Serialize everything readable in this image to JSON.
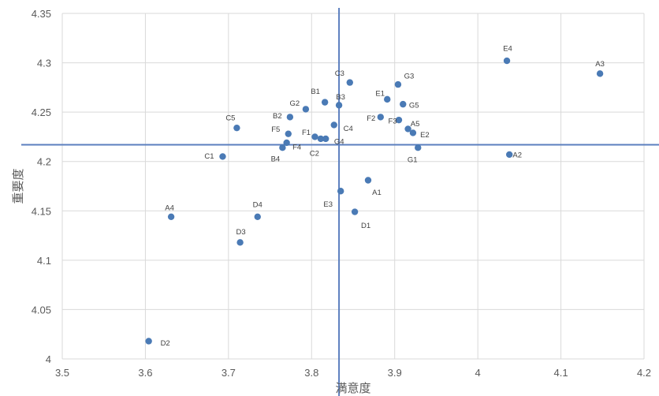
{
  "chart_data": {
    "type": "scatter",
    "title": "",
    "xlabel": "満意度",
    "ylabel": "重要度",
    "xlim": [
      3.5,
      4.2
    ],
    "ylim": [
      4.0,
      4.35
    ],
    "xticks": [
      "3.5",
      "3.6",
      "3.7",
      "3.8",
      "3.9",
      "4",
      "4.1",
      "4.2"
    ],
    "yticks": [
      "4",
      "4.05",
      "4.1",
      "4.15",
      "4.2",
      "4.25",
      "4.3",
      "4.35"
    ],
    "grid": true,
    "legend": "none",
    "marker_color": "#4a7ab5",
    "reference_line_color": "#5b7fbf",
    "reference_lines": {
      "x": 3.833,
      "y": 4.217
    },
    "points": [
      {
        "label": "A1",
        "x": 3.868,
        "y": 4.181
      },
      {
        "label": "A2",
        "x": 4.038,
        "y": 4.207
      },
      {
        "label": "A3",
        "x": 4.147,
        "y": 4.289
      },
      {
        "label": "A4",
        "x": 3.631,
        "y": 4.144
      },
      {
        "label": "A5",
        "x": 3.916,
        "y": 4.233
      },
      {
        "label": "B1",
        "x": 3.816,
        "y": 4.26
      },
      {
        "label": "B2",
        "x": 3.774,
        "y": 4.245
      },
      {
        "label": "B3",
        "x": 3.833,
        "y": 4.257
      },
      {
        "label": "B4",
        "x": 3.765,
        "y": 4.214
      },
      {
        "label": "C1",
        "x": 3.693,
        "y": 4.205
      },
      {
        "label": "C2",
        "x": 3.811,
        "y": 4.223
      },
      {
        "label": "C3",
        "x": 3.846,
        "y": 4.28
      },
      {
        "label": "C4",
        "x": 3.827,
        "y": 4.237
      },
      {
        "label": "C5",
        "x": 3.71,
        "y": 4.234
      },
      {
        "label": "D1",
        "x": 3.852,
        "y": 4.149
      },
      {
        "label": "D2",
        "x": 3.604,
        "y": 4.018
      },
      {
        "label": "D3",
        "x": 3.714,
        "y": 4.118
      },
      {
        "label": "D4",
        "x": 3.735,
        "y": 4.144
      },
      {
        "label": "E1",
        "x": 3.891,
        "y": 4.263
      },
      {
        "label": "E2",
        "x": 3.922,
        "y": 4.229
      },
      {
        "label": "E3",
        "x": 3.835,
        "y": 4.17
      },
      {
        "label": "E4",
        "x": 4.035,
        "y": 4.302
      },
      {
        "label": "F1",
        "x": 3.804,
        "y": 4.225
      },
      {
        "label": "F2",
        "x": 3.883,
        "y": 4.245
      },
      {
        "label": "F3",
        "x": 3.905,
        "y": 4.242
      },
      {
        "label": "F4",
        "x": 3.77,
        "y": 4.219
      },
      {
        "label": "F5",
        "x": 3.772,
        "y": 4.228
      },
      {
        "label": "G1",
        "x": 3.928,
        "y": 4.214
      },
      {
        "label": "G2",
        "x": 3.793,
        "y": 4.253
      },
      {
        "label": "G3",
        "x": 3.904,
        "y": 4.278
      },
      {
        "label": "G4",
        "x": 3.817,
        "y": 4.223
      },
      {
        "label": "G5",
        "x": 3.91,
        "y": 4.258
      }
    ]
  }
}
